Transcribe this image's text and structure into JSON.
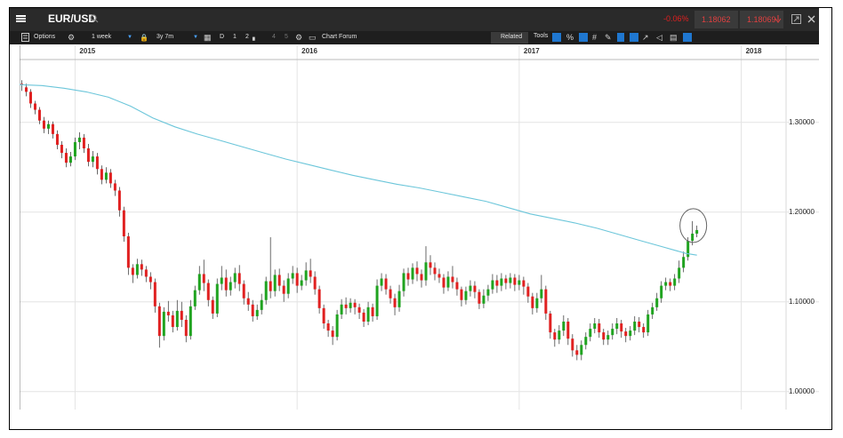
{
  "header": {
    "symbol": "EUR/USD",
    "change": "-0.06%",
    "sell_price": "1.18062",
    "buy_price": "1.18069"
  },
  "toolbar": {
    "options_label": "Options",
    "interval_label": "1 week",
    "range_label": "3y 7m",
    "d_label": "D",
    "one_label": "1",
    "two_label": "2",
    "four_label": "4",
    "five_label": "5",
    "chart_forum_label": "Chart Forum",
    "related_label": "Related",
    "tools_label": "Tools"
  },
  "colors": {
    "up": "#1fa31f",
    "down": "#e02020",
    "ma": "#6cc6da",
    "grid": "#e4e4e4"
  },
  "chart_data": {
    "type": "candlestick",
    "instrument": "EUR/USD",
    "interval": "1 week",
    "x_tick_labels": [
      "2015",
      "2016",
      "2017",
      "2018"
    ],
    "y_tick_labels": [
      "1.30000",
      "1.20000",
      "1.10000",
      "1.00000"
    ],
    "ylim": [
      0.98,
      1.37
    ],
    "xlim": [
      2014.75,
      2018.35
    ],
    "grid": true,
    "candles": [
      [
        2014.76,
        1.343,
        1.342,
        1.335,
        1.347
      ],
      [
        2014.78,
        1.339,
        1.334,
        1.329,
        1.343
      ],
      [
        2014.8,
        1.334,
        1.321,
        1.316,
        1.337
      ],
      [
        2014.82,
        1.321,
        1.314,
        1.309,
        1.324
      ],
      [
        2014.84,
        1.314,
        1.302,
        1.298,
        1.317
      ],
      [
        2014.86,
        1.302,
        1.293,
        1.288,
        1.306
      ],
      [
        2014.88,
        1.293,
        1.298,
        1.287,
        1.302
      ],
      [
        2014.9,
        1.298,
        1.287,
        1.282,
        1.301
      ],
      [
        2014.92,
        1.287,
        1.275,
        1.27,
        1.291
      ],
      [
        2014.94,
        1.275,
        1.266,
        1.26,
        1.279
      ],
      [
        2014.96,
        1.266,
        1.255,
        1.25,
        1.271
      ],
      [
        2014.98,
        1.255,
        1.262,
        1.251,
        1.267
      ],
      [
        2015.0,
        1.262,
        1.278,
        1.258,
        1.283
      ],
      [
        2015.02,
        1.278,
        1.283,
        1.27,
        1.289
      ],
      [
        2015.04,
        1.283,
        1.271,
        1.266,
        1.287
      ],
      [
        2015.06,
        1.271,
        1.256,
        1.251,
        1.276
      ],
      [
        2015.08,
        1.256,
        1.262,
        1.25,
        1.268
      ],
      [
        2015.1,
        1.262,
        1.248,
        1.242,
        1.266
      ],
      [
        2015.12,
        1.248,
        1.236,
        1.231,
        1.252
      ],
      [
        2015.14,
        1.236,
        1.244,
        1.232,
        1.25
      ],
      [
        2015.16,
        1.244,
        1.232,
        1.227,
        1.248
      ],
      [
        2015.18,
        1.232,
        1.224,
        1.218,
        1.236
      ],
      [
        2015.2,
        1.224,
        1.202,
        1.195,
        1.228
      ],
      [
        2015.22,
        1.202,
        1.173,
        1.167,
        1.206
      ],
      [
        2015.24,
        1.173,
        1.138,
        1.13,
        1.177
      ],
      [
        2015.26,
        1.138,
        1.13,
        1.121,
        1.142
      ],
      [
        2015.28,
        1.13,
        1.142,
        1.126,
        1.148
      ],
      [
        2015.3,
        1.142,
        1.136,
        1.129,
        1.147
      ],
      [
        2015.32,
        1.136,
        1.128,
        1.122,
        1.14
      ],
      [
        2015.34,
        1.128,
        1.122,
        1.114,
        1.133
      ],
      [
        2015.36,
        1.122,
        1.095,
        1.088,
        1.126
      ],
      [
        2015.38,
        1.095,
        1.062,
        1.049,
        1.099
      ],
      [
        2015.4,
        1.062,
        1.089,
        1.057,
        1.094
      ],
      [
        2015.42,
        1.089,
        1.085,
        1.078,
        1.101
      ],
      [
        2015.44,
        1.085,
        1.072,
        1.066,
        1.09
      ],
      [
        2015.46,
        1.072,
        1.09,
        1.068,
        1.102
      ],
      [
        2015.48,
        1.09,
        1.08,
        1.072,
        1.1
      ],
      [
        2015.5,
        1.08,
        1.062,
        1.055,
        1.085
      ],
      [
        2015.52,
        1.062,
        1.095,
        1.058,
        1.102
      ],
      [
        2015.54,
        1.095,
        1.113,
        1.091,
        1.118
      ],
      [
        2015.56,
        1.113,
        1.131,
        1.108,
        1.14
      ],
      [
        2015.58,
        1.131,
        1.121,
        1.112,
        1.147
      ],
      [
        2015.6,
        1.121,
        1.102,
        1.095,
        1.125
      ],
      [
        2015.62,
        1.102,
        1.087,
        1.081,
        1.106
      ],
      [
        2015.64,
        1.087,
        1.12,
        1.083,
        1.126
      ],
      [
        2015.66,
        1.12,
        1.127,
        1.113,
        1.14
      ],
      [
        2015.68,
        1.127,
        1.113,
        1.106,
        1.136
      ],
      [
        2015.7,
        1.113,
        1.122,
        1.107,
        1.128
      ],
      [
        2015.72,
        1.122,
        1.132,
        1.115,
        1.138
      ],
      [
        2015.74,
        1.132,
        1.12,
        1.112,
        1.141
      ],
      [
        2015.76,
        1.12,
        1.104,
        1.097,
        1.124
      ],
      [
        2015.78,
        1.104,
        1.097,
        1.09,
        1.111
      ],
      [
        2015.8,
        1.097,
        1.084,
        1.078,
        1.102
      ],
      [
        2015.82,
        1.084,
        1.091,
        1.08,
        1.097
      ],
      [
        2015.84,
        1.091,
        1.102,
        1.086,
        1.109
      ],
      [
        2015.86,
        1.102,
        1.123,
        1.097,
        1.128
      ],
      [
        2015.88,
        1.123,
        1.112,
        1.104,
        1.172
      ],
      [
        2015.9,
        1.112,
        1.13,
        1.106,
        1.136
      ],
      [
        2015.92,
        1.13,
        1.118,
        1.112,
        1.137
      ],
      [
        2015.94,
        1.118,
        1.109,
        1.1,
        1.124
      ],
      [
        2015.96,
        1.109,
        1.126,
        1.104,
        1.132
      ],
      [
        2015.98,
        1.126,
        1.132,
        1.12,
        1.14
      ],
      [
        2016.0,
        1.132,
        1.118,
        1.11,
        1.138
      ],
      [
        2016.02,
        1.118,
        1.124,
        1.113,
        1.13
      ],
      [
        2016.04,
        1.124,
        1.135,
        1.118,
        1.144
      ],
      [
        2016.06,
        1.135,
        1.128,
        1.121,
        1.148
      ],
      [
        2016.08,
        1.128,
        1.114,
        1.108,
        1.134
      ],
      [
        2016.1,
        1.114,
        1.093,
        1.087,
        1.118
      ],
      [
        2016.12,
        1.093,
        1.076,
        1.07,
        1.097
      ],
      [
        2016.14,
        1.076,
        1.068,
        1.061,
        1.08
      ],
      [
        2016.16,
        1.068,
        1.061,
        1.052,
        1.073
      ],
      [
        2016.18,
        1.061,
        1.086,
        1.057,
        1.091
      ],
      [
        2016.2,
        1.086,
        1.097,
        1.081,
        1.103
      ],
      [
        2016.22,
        1.097,
        1.093,
        1.086,
        1.105
      ],
      [
        2016.24,
        1.093,
        1.099,
        1.088,
        1.104
      ],
      [
        2016.26,
        1.099,
        1.094,
        1.086,
        1.103
      ],
      [
        2016.28,
        1.094,
        1.088,
        1.081,
        1.098
      ],
      [
        2016.3,
        1.088,
        1.078,
        1.072,
        1.092
      ],
      [
        2016.32,
        1.078,
        1.094,
        1.074,
        1.1
      ],
      [
        2016.34,
        1.094,
        1.084,
        1.078,
        1.098
      ],
      [
        2016.36,
        1.084,
        1.118,
        1.08,
        1.125
      ],
      [
        2016.38,
        1.118,
        1.126,
        1.112,
        1.132
      ],
      [
        2016.4,
        1.126,
        1.114,
        1.108,
        1.131
      ],
      [
        2016.42,
        1.114,
        1.104,
        1.098,
        1.118
      ],
      [
        2016.44,
        1.104,
        1.094,
        1.085,
        1.109
      ],
      [
        2016.46,
        1.094,
        1.112,
        1.089,
        1.119
      ],
      [
        2016.48,
        1.112,
        1.132,
        1.106,
        1.137
      ],
      [
        2016.5,
        1.132,
        1.125,
        1.118,
        1.138
      ],
      [
        2016.52,
        1.125,
        1.138,
        1.12,
        1.143
      ],
      [
        2016.54,
        1.138,
        1.131,
        1.123,
        1.145
      ],
      [
        2016.56,
        1.131,
        1.124,
        1.116,
        1.136
      ],
      [
        2016.58,
        1.124,
        1.144,
        1.118,
        1.162
      ],
      [
        2016.6,
        1.144,
        1.138,
        1.13,
        1.152
      ],
      [
        2016.62,
        1.138,
        1.131,
        1.124,
        1.144
      ],
      [
        2016.64,
        1.131,
        1.127,
        1.121,
        1.137
      ],
      [
        2016.66,
        1.127,
        1.116,
        1.109,
        1.131
      ],
      [
        2016.68,
        1.116,
        1.128,
        1.112,
        1.134
      ],
      [
        2016.7,
        1.128,
        1.122,
        1.115,
        1.14
      ],
      [
        2016.72,
        1.122,
        1.114,
        1.107,
        1.127
      ],
      [
        2016.74,
        1.114,
        1.102,
        1.095,
        1.117
      ],
      [
        2016.76,
        1.102,
        1.112,
        1.097,
        1.117
      ],
      [
        2016.78,
        1.112,
        1.118,
        1.106,
        1.124
      ],
      [
        2016.8,
        1.118,
        1.111,
        1.104,
        1.123
      ],
      [
        2016.82,
        1.111,
        1.098,
        1.092,
        1.114
      ],
      [
        2016.84,
        1.098,
        1.107,
        1.093,
        1.114
      ],
      [
        2016.86,
        1.107,
        1.114,
        1.101,
        1.119
      ],
      [
        2016.88,
        1.114,
        1.124,
        1.109,
        1.131
      ],
      [
        2016.9,
        1.124,
        1.118,
        1.11,
        1.13
      ],
      [
        2016.92,
        1.118,
        1.126,
        1.112,
        1.132
      ],
      [
        2016.94,
        1.126,
        1.121,
        1.114,
        1.13
      ],
      [
        2016.96,
        1.121,
        1.127,
        1.115,
        1.132
      ],
      [
        2016.98,
        1.127,
        1.119,
        1.112,
        1.131
      ],
      [
        2017.0,
        1.119,
        1.124,
        1.113,
        1.13
      ],
      [
        2017.02,
        1.124,
        1.117,
        1.108,
        1.128
      ],
      [
        2017.04,
        1.117,
        1.106,
        1.099,
        1.121
      ],
      [
        2017.06,
        1.106,
        1.093,
        1.086,
        1.11
      ],
      [
        2017.08,
        1.093,
        1.104,
        1.088,
        1.11
      ],
      [
        2017.1,
        1.104,
        1.114,
        1.099,
        1.13
      ],
      [
        2017.12,
        1.114,
        1.087,
        1.08,
        1.118
      ],
      [
        2017.14,
        1.087,
        1.066,
        1.059,
        1.09
      ],
      [
        2017.16,
        1.066,
        1.058,
        1.05,
        1.07
      ],
      [
        2017.18,
        1.058,
        1.068,
        1.053,
        1.074
      ],
      [
        2017.2,
        1.068,
        1.078,
        1.062,
        1.085
      ],
      [
        2017.22,
        1.078,
        1.059,
        1.052,
        1.082
      ],
      [
        2017.24,
        1.059,
        1.046,
        1.039,
        1.064
      ],
      [
        2017.26,
        1.046,
        1.041,
        1.035,
        1.052
      ],
      [
        2017.28,
        1.041,
        1.052,
        1.035,
        1.057
      ],
      [
        2017.3,
        1.052,
        1.061,
        1.047,
        1.066
      ],
      [
        2017.32,
        1.061,
        1.07,
        1.056,
        1.076
      ],
      [
        2017.34,
        1.07,
        1.076,
        1.065,
        1.082
      ],
      [
        2017.36,
        1.076,
        1.066,
        1.06,
        1.081
      ],
      [
        2017.38,
        1.066,
        1.058,
        1.052,
        1.07
      ],
      [
        2017.4,
        1.058,
        1.063,
        1.052,
        1.068
      ],
      [
        2017.42,
        1.063,
        1.07,
        1.058,
        1.076
      ],
      [
        2017.44,
        1.07,
        1.076,
        1.064,
        1.082
      ],
      [
        2017.46,
        1.076,
        1.067,
        1.06,
        1.08
      ],
      [
        2017.48,
        1.067,
        1.062,
        1.055,
        1.071
      ],
      [
        2017.5,
        1.062,
        1.068,
        1.057,
        1.073
      ],
      [
        2017.52,
        1.068,
        1.078,
        1.063,
        1.084
      ],
      [
        2017.54,
        1.078,
        1.072,
        1.066,
        1.083
      ],
      [
        2017.56,
        1.072,
        1.066,
        1.06,
        1.076
      ],
      [
        2017.58,
        1.066,
        1.086,
        1.062,
        1.091
      ],
      [
        2017.6,
        1.086,
        1.094,
        1.081,
        1.099
      ],
      [
        2017.62,
        1.094,
        1.104,
        1.09,
        1.11
      ],
      [
        2017.64,
        1.104,
        1.118,
        1.099,
        1.123
      ],
      [
        2017.66,
        1.118,
        1.122,
        1.113,
        1.127
      ],
      [
        2017.68,
        1.122,
        1.118,
        1.112,
        1.126
      ],
      [
        2017.7,
        1.118,
        1.126,
        1.113,
        1.131
      ],
      [
        2017.72,
        1.126,
        1.138,
        1.121,
        1.146
      ],
      [
        2017.74,
        1.138,
        1.15,
        1.133,
        1.156
      ],
      [
        2017.76,
        1.15,
        1.168,
        1.146,
        1.172
      ],
      [
        2017.78,
        1.168,
        1.176,
        1.163,
        1.19
      ],
      [
        2017.8,
        1.176,
        1.18,
        1.172,
        1.185
      ]
    ],
    "ma_line": [
      [
        2014.75,
        1.342
      ],
      [
        2014.85,
        1.341
      ],
      [
        2014.95,
        1.338
      ],
      [
        2015.05,
        1.334
      ],
      [
        2015.15,
        1.328
      ],
      [
        2015.25,
        1.318
      ],
      [
        2015.35,
        1.305
      ],
      [
        2015.45,
        1.295
      ],
      [
        2015.55,
        1.287
      ],
      [
        2015.65,
        1.28
      ],
      [
        2015.75,
        1.273
      ],
      [
        2015.85,
        1.266
      ],
      [
        2015.95,
        1.259
      ],
      [
        2016.05,
        1.253
      ],
      [
        2016.15,
        1.247
      ],
      [
        2016.25,
        1.241
      ],
      [
        2016.35,
        1.236
      ],
      [
        2016.45,
        1.231
      ],
      [
        2016.55,
        1.227
      ],
      [
        2016.65,
        1.222
      ],
      [
        2016.75,
        1.217
      ],
      [
        2016.85,
        1.212
      ],
      [
        2016.95,
        1.205
      ],
      [
        2017.05,
        1.198
      ],
      [
        2017.15,
        1.193
      ],
      [
        2017.25,
        1.188
      ],
      [
        2017.35,
        1.182
      ],
      [
        2017.45,
        1.175
      ],
      [
        2017.55,
        1.168
      ],
      [
        2017.65,
        1.161
      ],
      [
        2017.75,
        1.154
      ],
      [
        2017.8,
        1.152
      ]
    ],
    "highlight": {
      "x": 2017.8,
      "y": 1.185
    }
  }
}
